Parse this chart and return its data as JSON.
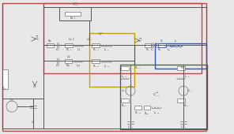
{
  "bg_color": "#e8e8e8",
  "colors": {
    "red": "#d04040",
    "yellow": "#c8a000",
    "blue": "#3355bb",
    "green": "#44aa33",
    "wire": "#555555",
    "comp": "#888888",
    "text": "#444444"
  },
  "boxes": {
    "red_outer": [
      3,
      3,
      258,
      163
    ],
    "red_inner": [
      55,
      3,
      200,
      90
    ],
    "yellow": [
      113,
      42,
      57,
      68
    ],
    "blue": [
      196,
      55,
      65,
      32
    ],
    "green": [
      152,
      82,
      110,
      82
    ]
  }
}
